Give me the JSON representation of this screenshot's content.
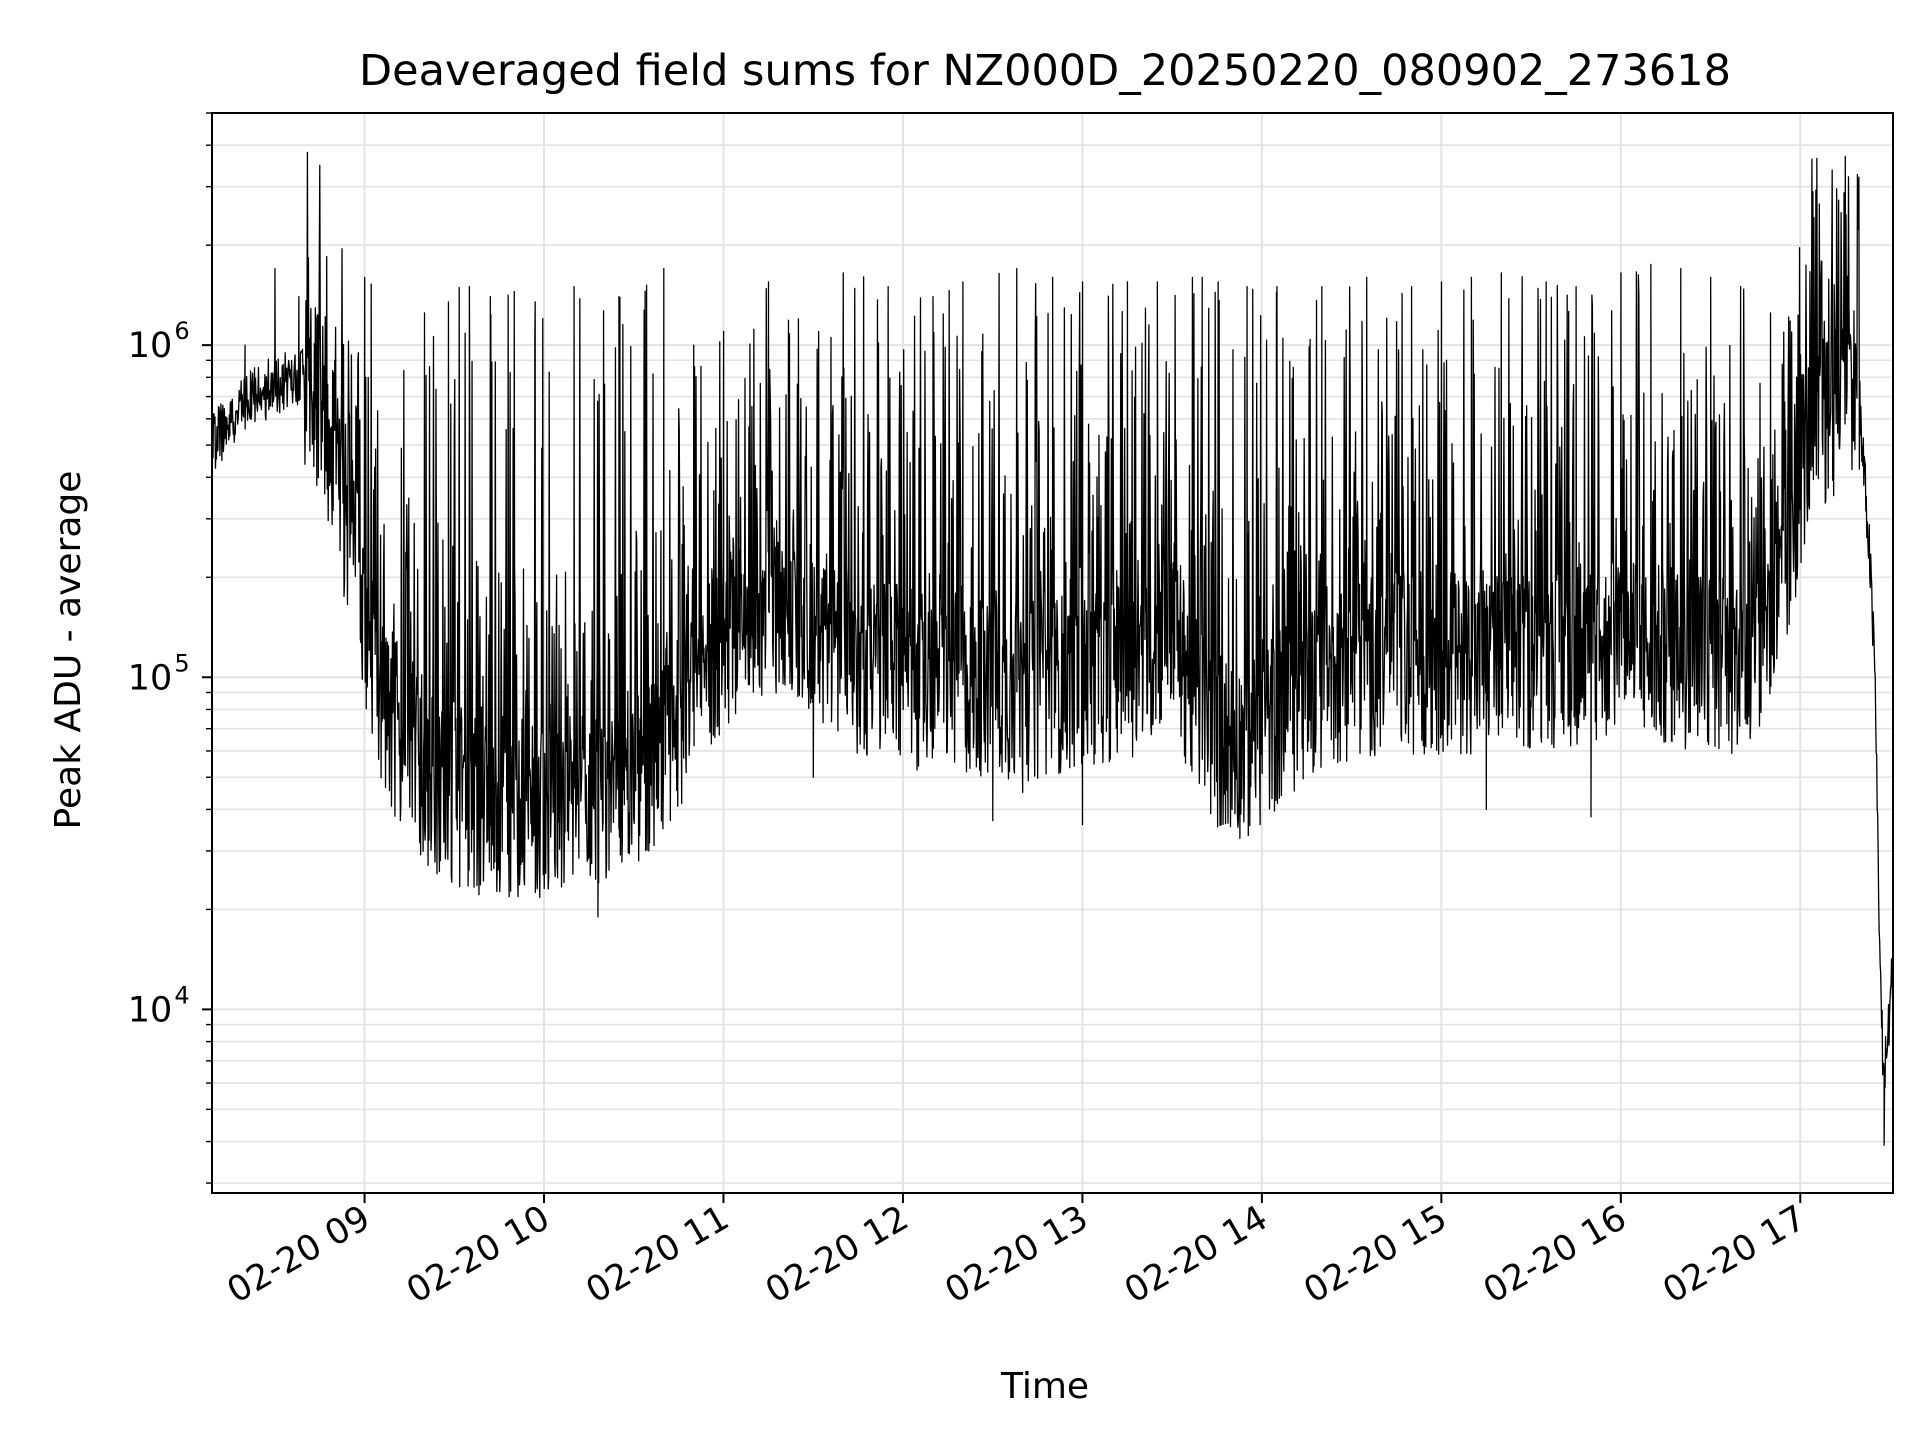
{
  "chart_data": {
    "type": "line",
    "title": "Deaveraged field sums for NZ000D_20250220_080902_273618",
    "xlabel": "Time",
    "ylabel": "Peak ADU - average",
    "yscale": "log",
    "ylim": [
      2800,
      5000000
    ],
    "xlim": [
      "02-20 08:09",
      "02-20 17:31"
    ],
    "x_ticks": [
      "02-20 09",
      "02-20 10",
      "02-20 11",
      "02-20 12",
      "02-20 13",
      "02-20 14",
      "02-20 15",
      "02-20 16",
      "02-20 17"
    ],
    "y_ticks": [
      {
        "base": "10",
        "exp": "4"
      },
      {
        "base": "10",
        "exp": "5"
      },
      {
        "base": "10",
        "exp": "6"
      }
    ],
    "grid": true,
    "line_color": "#000000",
    "baseline": [
      [
        "08:09",
        500000
      ],
      [
        "08:18",
        650000
      ],
      [
        "08:30",
        760000
      ],
      [
        "08:40",
        800000
      ],
      [
        "08:48",
        550000
      ],
      [
        "08:54",
        300000
      ],
      [
        "09:00",
        150000
      ],
      [
        "09:04",
        100000
      ],
      [
        "09:10",
        70000
      ],
      [
        "09:20",
        50000
      ],
      [
        "09:35",
        42000
      ],
      [
        "09:50",
        40000
      ],
      [
        "10:05",
        40000
      ],
      [
        "10:20",
        42000
      ],
      [
        "10:35",
        50000
      ],
      [
        "10:45",
        75000
      ],
      [
        "10:55",
        110000
      ],
      [
        "11:05",
        150000
      ],
      [
        "11:15",
        170000
      ],
      [
        "11:30",
        140000
      ],
      [
        "11:45",
        110000
      ],
      [
        "12:00",
        100000
      ],
      [
        "12:20",
        95000
      ],
      [
        "12:40",
        90000
      ],
      [
        "13:00",
        100000
      ],
      [
        "13:20",
        110000
      ],
      [
        "13:30",
        150000
      ],
      [
        "13:36",
        90000
      ],
      [
        "13:45",
        65000
      ],
      [
        "13:55",
        60000
      ],
      [
        "14:05",
        75000
      ],
      [
        "14:20",
        100000
      ],
      [
        "14:40",
        110000
      ],
      [
        "15:00",
        110000
      ],
      [
        "15:20",
        110000
      ],
      [
        "15:40",
        115000
      ],
      [
        "16:00",
        120000
      ],
      [
        "16:20",
        115000
      ],
      [
        "16:40",
        110000
      ],
      [
        "16:50",
        130000
      ],
      [
        "16:57",
        250000
      ],
      [
        "17:02",
        500000
      ],
      [
        "17:10",
        600000
      ],
      [
        "17:16",
        900000
      ],
      [
        "17:20",
        600000
      ],
      [
        "17:23",
        250000
      ],
      [
        "17:25",
        100000
      ],
      [
        "17:26",
        30000
      ],
      [
        "17:27",
        10000
      ],
      [
        "17:28",
        6000
      ],
      [
        "17:30",
        10000
      ],
      [
        "17:31",
        14000
      ]
    ],
    "spikes": [
      [
        "08:20",
        1000000
      ],
      [
        "08:30",
        1700000
      ],
      [
        "08:38",
        1400000
      ],
      [
        "08:44",
        1200000
      ],
      [
        "08:50",
        900000
      ],
      [
        "09:00",
        1600000
      ],
      [
        "09:20",
        1250000
      ],
      [
        "09:28",
        1350000
      ],
      [
        "09:35",
        1500000
      ],
      [
        "09:42",
        1400000
      ],
      [
        "09:50",
        1450000
      ],
      [
        "09:57",
        1350000
      ],
      [
        "10:10",
        1500000
      ],
      [
        "10:25",
        1400000
      ],
      [
        "10:40",
        1700000
      ],
      [
        "10:50",
        1000000
      ],
      [
        "11:00",
        1100000
      ],
      [
        "11:15",
        1550000
      ],
      [
        "11:25",
        1200000
      ],
      [
        "11:40",
        1650000
      ],
      [
        "11:55",
        1500000
      ],
      [
        "12:10",
        1400000
      ],
      [
        "12:20",
        1550000
      ],
      [
        "12:38",
        1700000
      ],
      [
        "12:50",
        1600000
      ],
      [
        "13:00",
        1550000
      ],
      [
        "13:15",
        1550000
      ],
      [
        "13:25",
        1550000
      ],
      [
        "13:40",
        1600000
      ],
      [
        "13:55",
        1500000
      ],
      [
        "14:05",
        1500000
      ],
      [
        "14:20",
        1500000
      ],
      [
        "14:35",
        1600000
      ],
      [
        "14:50",
        1500000
      ],
      [
        "15:00",
        1550000
      ],
      [
        "15:10",
        1600000
      ],
      [
        "15:20",
        1650000
      ],
      [
        "15:35",
        1550000
      ],
      [
        "15:45",
        1500000
      ],
      [
        "16:00",
        1650000
      ],
      [
        "16:10",
        1750000
      ],
      [
        "16:20",
        1700000
      ],
      [
        "16:30",
        1600000
      ],
      [
        "16:40",
        1500000
      ],
      [
        "16:50",
        1250000
      ],
      [
        "17:15",
        3700000
      ]
    ],
    "dips": [
      [
        "09:25",
        26000
      ],
      [
        "09:45",
        27000
      ],
      [
        "10:00",
        26000
      ],
      [
        "10:18",
        19000
      ],
      [
        "10:35",
        30000
      ],
      [
        "11:30",
        50000
      ],
      [
        "12:30",
        37000
      ],
      [
        "12:40",
        45000
      ],
      [
        "13:00",
        36000
      ],
      [
        "13:50",
        40000
      ],
      [
        "15:15",
        40000
      ],
      [
        "15:50",
        38000
      ],
      [
        "17:28",
        3900
      ]
    ]
  }
}
